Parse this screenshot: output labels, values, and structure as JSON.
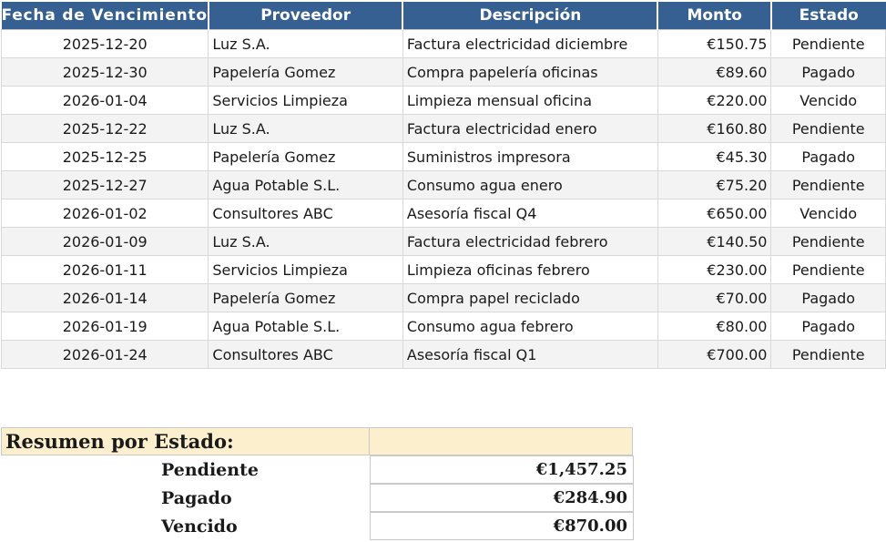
{
  "table": {
    "columns": {
      "fecha": "Fecha de Vencimiento",
      "proveedor": "Proveedor",
      "descripcion": "Descripción",
      "monto": "Monto",
      "estado": "Estado"
    },
    "rows": [
      [
        "2025-12-20",
        "Luz S.A.",
        "Factura electricidad diciembre",
        "€150.75",
        "Pendiente"
      ],
      [
        "2025-12-30",
        "Papelería Gomez",
        "Compra papelería oficinas",
        "€89.60",
        "Pagado"
      ],
      [
        "2026-01-04",
        "Servicios Limpieza",
        "Limpieza mensual oficina",
        "€220.00",
        "Vencido"
      ],
      [
        "2025-12-22",
        "Luz S.A.",
        "Factura electricidad enero",
        "€160.80",
        "Pendiente"
      ],
      [
        "2025-12-25",
        "Papelería Gomez",
        "Suministros impresora",
        "€45.30",
        "Pagado"
      ],
      [
        "2025-12-27",
        "Agua Potable S.L.",
        "Consumo agua enero",
        "€75.20",
        "Pendiente"
      ],
      [
        "2026-01-02",
        "Consultores ABC",
        "Asesoría fiscal Q4",
        "€650.00",
        "Vencido"
      ],
      [
        "2026-01-09",
        "Luz S.A.",
        "Factura electricidad febrero",
        "€140.50",
        "Pendiente"
      ],
      [
        "2026-01-11",
        "Servicios Limpieza",
        "Limpieza oficinas febrero",
        "€230.00",
        "Pendiente"
      ],
      [
        "2026-01-14",
        "Papelería Gomez",
        "Compra papel reciclado",
        "€70.00",
        "Pagado"
      ],
      [
        "2026-01-19",
        "Agua Potable S.L.",
        "Consumo agua febrero",
        "€80.00",
        "Pagado"
      ],
      [
        "2026-01-24",
        "Consultores ABC",
        "Asesoría fiscal Q1",
        "€700.00",
        "Pendiente"
      ]
    ]
  },
  "summary": {
    "title": "Resumen por Estado:",
    "rows": [
      {
        "label": "Pendiente",
        "value": "€1,457.25"
      },
      {
        "label": "Pagado",
        "value": "€284.90"
      },
      {
        "label": "Vencido",
        "value": "€870.00"
      }
    ]
  },
  "colors": {
    "header_bg": "#366092",
    "header_text": "#ffffff",
    "row_stripe": "#f3f3f3",
    "grid_border": "#d9d9d9",
    "summary_header_bg": "#fcefce",
    "summary_border": "#c9c9c9",
    "text": "#1a1a1a"
  }
}
